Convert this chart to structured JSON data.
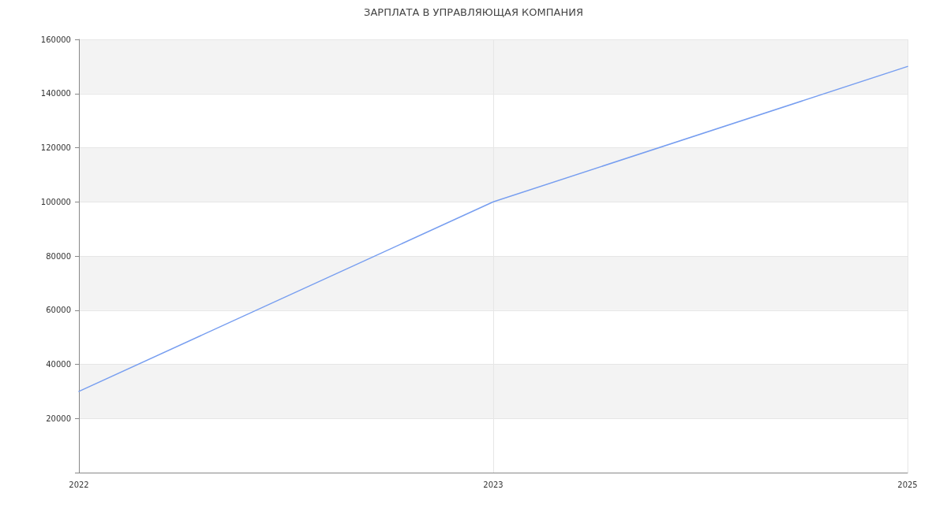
{
  "chart_data": {
    "type": "line",
    "title": "ЗАРПЛАТА В УПРАВЛЯЮЩАЯ КОМПАНИЯ",
    "categories": [
      "2022",
      "2023",
      "2025"
    ],
    "series": [
      {
        "color": "#779ef0",
        "values": [
          30000,
          100000,
          150000
        ]
      }
    ],
    "ylim": [
      0,
      160000
    ],
    "yticks": [
      {
        "value": 0,
        "label": null
      },
      20000,
      40000,
      60000,
      80000,
      100000,
      120000,
      140000,
      160000
    ],
    "grid": true,
    "line_style": "solid"
  }
}
